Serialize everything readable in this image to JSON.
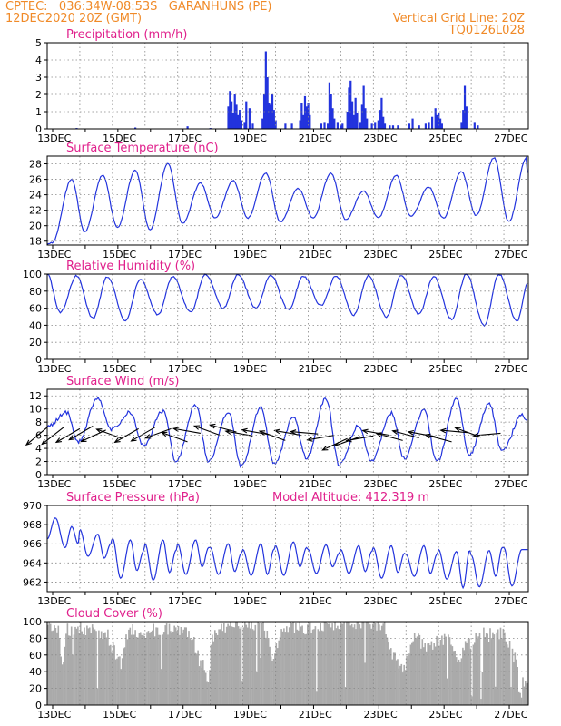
{
  "header": {
    "line1_left": "CPTEC:   036:34W-08:53S   GARANHUNS (PE)",
    "line2_left": "12DEC2020 20Z (GMT)",
    "line1_right": "Vertical Grid Line: 20Z",
    "line2_right": "TQ0126L028"
  },
  "colors": {
    "header": "#f08a28",
    "panel_title": "#e0208c",
    "series": "#2233dd",
    "cloud": "#aaaaaa",
    "wind_arrow": "#000000",
    "grid": "#888888"
  },
  "x_axis": {
    "start_hours_label": "12DEC 20Z",
    "tick_labels": [
      "13DEC",
      "15DEC",
      "17DEC",
      "19DEC",
      "21DEC",
      "23DEC",
      "25DEC",
      "27DEC"
    ]
  },
  "chart_data": [
    {
      "id": "precip",
      "type": "bar",
      "title": "Precipitation (mm/h)",
      "ylim": [
        0,
        5
      ],
      "yticks": [
        0,
        1,
        2,
        3,
        4,
        5
      ],
      "x_unit": "days since 12DEC 20Z",
      "events": [
        [
          0.9,
          0.05
        ],
        [
          2.7,
          0.08
        ],
        [
          4.3,
          0.15
        ],
        [
          5.0,
          0.05
        ],
        [
          5.55,
          1.3
        ],
        [
          5.6,
          2.2
        ],
        [
          5.65,
          1.6
        ],
        [
          5.7,
          0.9
        ],
        [
          5.75,
          2.0
        ],
        [
          5.8,
          1.4
        ],
        [
          5.85,
          0.8
        ],
        [
          5.9,
          1.1
        ],
        [
          5.95,
          0.5
        ],
        [
          6.05,
          0.4
        ],
        [
          6.1,
          1.6
        ],
        [
          6.2,
          1.2
        ],
        [
          6.3,
          0.3
        ],
        [
          6.6,
          0.6
        ],
        [
          6.65,
          2.0
        ],
        [
          6.7,
          4.5
        ],
        [
          6.75,
          3.0
        ],
        [
          6.8,
          1.5
        ],
        [
          6.85,
          1.4
        ],
        [
          6.9,
          2.0
        ],
        [
          6.95,
          1.1
        ],
        [
          7.0,
          0.5
        ],
        [
          7.3,
          0.3
        ],
        [
          7.5,
          0.3
        ],
        [
          7.75,
          0.5
        ],
        [
          7.8,
          1.5
        ],
        [
          7.85,
          0.8
        ],
        [
          7.9,
          1.9
        ],
        [
          7.95,
          1.3
        ],
        [
          8.0,
          1.5
        ],
        [
          8.05,
          0.8
        ],
        [
          8.4,
          0.3
        ],
        [
          8.5,
          0.4
        ],
        [
          8.6,
          0.3
        ],
        [
          8.65,
          2.7
        ],
        [
          8.7,
          2.0
        ],
        [
          8.75,
          1.2
        ],
        [
          8.8,
          0.6
        ],
        [
          8.9,
          0.4
        ],
        [
          9.0,
          0.2
        ],
        [
          9.05,
          0.3
        ],
        [
          9.2,
          1.0
        ],
        [
          9.25,
          2.4
        ],
        [
          9.3,
          2.8
        ],
        [
          9.35,
          1.6
        ],
        [
          9.4,
          0.8
        ],
        [
          9.45,
          1.8
        ],
        [
          9.5,
          0.9
        ],
        [
          9.6,
          0.4
        ],
        [
          9.65,
          1.4
        ],
        [
          9.7,
          2.5
        ],
        [
          9.75,
          1.2
        ],
        [
          9.8,
          0.6
        ],
        [
          9.95,
          0.3
        ],
        [
          10.05,
          0.4
        ],
        [
          10.15,
          0.5
        ],
        [
          10.2,
          1.1
        ],
        [
          10.25,
          1.8
        ],
        [
          10.3,
          0.7
        ],
        [
          10.35,
          0.3
        ],
        [
          10.5,
          0.2
        ],
        [
          10.6,
          0.2
        ],
        [
          10.75,
          0.2
        ],
        [
          11.1,
          0.3
        ],
        [
          11.2,
          0.6
        ],
        [
          11.4,
          0.2
        ],
        [
          11.6,
          0.3
        ],
        [
          11.7,
          0.4
        ],
        [
          11.8,
          0.7
        ],
        [
          11.9,
          1.2
        ],
        [
          11.95,
          0.8
        ],
        [
          12.0,
          0.9
        ],
        [
          12.05,
          0.6
        ],
        [
          12.1,
          0.3
        ],
        [
          12.7,
          0.4
        ],
        [
          12.75,
          1.1
        ],
        [
          12.8,
          2.5
        ],
        [
          12.85,
          1.3
        ],
        [
          13.1,
          0.4
        ],
        [
          13.2,
          0.2
        ]
      ]
    },
    {
      "id": "temp",
      "type": "line",
      "title": "Surface Temperature (nC)",
      "ylim": [
        17.5,
        29
      ],
      "yticks": [
        18,
        20,
        22,
        24,
        26,
        28
      ],
      "daily": [
        [
          17.6,
          26.0,
          19.2
        ],
        [
          26.5,
          19.8
        ],
        [
          27.2,
          19.5
        ],
        [
          28.0,
          20.3
        ],
        [
          25.5,
          21.0
        ],
        [
          25.8,
          21.0
        ],
        [
          26.8,
          20.5
        ],
        [
          24.8,
          21.0
        ],
        [
          26.8,
          20.8
        ],
        [
          24.5,
          21.0
        ],
        [
          26.5,
          21.2
        ],
        [
          25.0,
          21.0
        ],
        [
          27.0,
          21.3
        ],
        [
          28.8,
          20.5
        ],
        [
          28.8,
          23.0
        ]
      ]
    },
    {
      "id": "rh",
      "type": "line",
      "title": "Relative Humidity (%)",
      "ylim": [
        0,
        100
      ],
      "yticks": [
        0,
        20,
        40,
        60,
        80,
        100
      ],
      "daily": [
        [
          100,
          55,
          98
        ],
        [
          48,
          97
        ],
        [
          45,
          94
        ],
        [
          52,
          97
        ],
        [
          55,
          100
        ],
        [
          60,
          100
        ],
        [
          60,
          99
        ],
        [
          58,
          98
        ],
        [
          63,
          98
        ],
        [
          52,
          98
        ],
        [
          50,
          99
        ],
        [
          53,
          97
        ],
        [
          47,
          100
        ],
        [
          40,
          100
        ],
        [
          45,
          90
        ]
      ]
    },
    {
      "id": "wind",
      "type": "line",
      "title": "Surface Wind (m/s)",
      "ylim": [
        0,
        13
      ],
      "yticks": [
        0,
        2,
        4,
        6,
        8,
        10,
        12
      ],
      "daily": [
        [
          7.3,
          9.5,
          5.0
        ],
        [
          11.6,
          6.8
        ],
        [
          9.5,
          4.5
        ],
        [
          9.7,
          2.0
        ],
        [
          10.6,
          2.0
        ],
        [
          9.6,
          1.2
        ],
        [
          10.3,
          1.6
        ],
        [
          8.6,
          2.5
        ],
        [
          11.6,
          1.5
        ],
        [
          7.5,
          2.0
        ],
        [
          9.4,
          2.5
        ],
        [
          9.8,
          2.0
        ],
        [
          11.5,
          3.0
        ],
        [
          10.8,
          3.5
        ],
        [
          9.0,
          8.0
        ]
      ],
      "vectors": [
        [
          0.0,
          7.2,
          -40
        ],
        [
          0.5,
          7.2,
          -38
        ],
        [
          1.0,
          7.0,
          -30
        ],
        [
          1.4,
          7.4,
          -30
        ],
        [
          1.8,
          6.8,
          -25
        ],
        [
          2.3,
          5.5,
          20
        ],
        [
          2.8,
          7.0,
          -30
        ],
        [
          3.3,
          7.2,
          -30
        ],
        [
          3.8,
          7.0,
          -20
        ],
        [
          4.3,
          5.0,
          20
        ],
        [
          4.7,
          6.3,
          10
        ],
        [
          5.3,
          6.0,
          20
        ],
        [
          5.8,
          6.5,
          15
        ],
        [
          6.3,
          5.9,
          10
        ],
        [
          6.8,
          6.1,
          10
        ],
        [
          7.3,
          5.2,
          20
        ],
        [
          7.8,
          6.0,
          10
        ],
        [
          8.3,
          6.2,
          5
        ],
        [
          8.8,
          6.0,
          -10
        ],
        [
          9.2,
          5.5,
          -25
        ],
        [
          9.6,
          5.8,
          -20
        ],
        [
          10.0,
          5.9,
          -10
        ],
        [
          10.5,
          6.0,
          10
        ],
        [
          10.9,
          5.2,
          15
        ],
        [
          11.4,
          5.6,
          15
        ],
        [
          11.9,
          5.8,
          10
        ],
        [
          12.4,
          5.0,
          15
        ],
        [
          12.9,
          6.4,
          5
        ],
        [
          13.3,
          5.7,
          20
        ],
        [
          13.9,
          6.3,
          -5
        ]
      ]
    },
    {
      "id": "pres",
      "type": "line",
      "title": "Surface Pressure (hPa)",
      "annotation": "Model Altitude: 412.319  m",
      "ylim": [
        961,
        970
      ],
      "yticks": [
        962,
        964,
        966,
        968,
        970
      ],
      "tide": [
        [
          966.5,
          968.7,
          965.6,
          967.8,
          966.0
        ],
        [
          967.5,
          964.7,
          967.0,
          964.5,
          966.0
        ],
        [
          966.6,
          962.4,
          966.4,
          963.2,
          965.2
        ],
        [
          966.0,
          962.2,
          966.4,
          963.0,
          965.3
        ],
        [
          966.0,
          962.8,
          966.4,
          963.6,
          965.6
        ],
        [
          965.6,
          962.8,
          966.0,
          963.1,
          965.0
        ],
        [
          965.4,
          962.7,
          966.0,
          962.8,
          965.4
        ],
        [
          965.8,
          962.7,
          966.2,
          963.6,
          965.6
        ],
        [
          965.4,
          962.9,
          965.9,
          963.6,
          965.0
        ],
        [
          965.4,
          962.9,
          965.8,
          963.1,
          965.2
        ],
        [
          965.6,
          962.4,
          965.8,
          963.0,
          965.0
        ],
        [
          964.9,
          962.6,
          965.8,
          962.9,
          964.9
        ],
        [
          965.4,
          962.3,
          965.2,
          961.4,
          965.3
        ],
        [
          964.8,
          961.5,
          965.3,
          962.6,
          965.6
        ],
        [
          965.6,
          961.6,
          965.4
        ]
      ]
    },
    {
      "id": "cloud",
      "type": "area",
      "title": "Cloud Cover (%)",
      "ylim": [
        0,
        100
      ],
      "yticks": [
        0,
        20,
        40,
        60,
        80,
        100
      ],
      "segments": [
        [
          0.0,
          95
        ],
        [
          0.3,
          90
        ],
        [
          0.45,
          55
        ],
        [
          0.6,
          90
        ],
        [
          0.9,
          92
        ],
        [
          1.3,
          88
        ],
        [
          1.8,
          85
        ],
        [
          2.0,
          70
        ],
        [
          2.2,
          50
        ],
        [
          2.5,
          90
        ],
        [
          3.0,
          88
        ],
        [
          3.5,
          90
        ],
        [
          4.0,
          92
        ],
        [
          4.4,
          85
        ],
        [
          4.6,
          60
        ],
        [
          4.8,
          45
        ],
        [
          4.9,
          25
        ],
        [
          5.05,
          80
        ],
        [
          5.3,
          95
        ],
        [
          5.8,
          98
        ],
        [
          6.3,
          98
        ],
        [
          6.6,
          95
        ],
        [
          6.9,
          60
        ],
        [
          7.2,
          90
        ],
        [
          7.6,
          95
        ],
        [
          8.2,
          92
        ],
        [
          8.7,
          98
        ],
        [
          9.2,
          100
        ],
        [
          9.8,
          100
        ],
        [
          10.3,
          96
        ],
        [
          10.6,
          60
        ],
        [
          10.9,
          40
        ],
        [
          11.2,
          85
        ],
        [
          11.6,
          70
        ],
        [
          11.9,
          75
        ],
        [
          12.3,
          80
        ],
        [
          12.6,
          55
        ],
        [
          12.8,
          70
        ],
        [
          13.2,
          85
        ],
        [
          13.6,
          85
        ],
        [
          14.0,
          85
        ],
        [
          14.3,
          60
        ],
        [
          14.5,
          15
        ],
        [
          14.6,
          30
        ]
      ]
    }
  ]
}
